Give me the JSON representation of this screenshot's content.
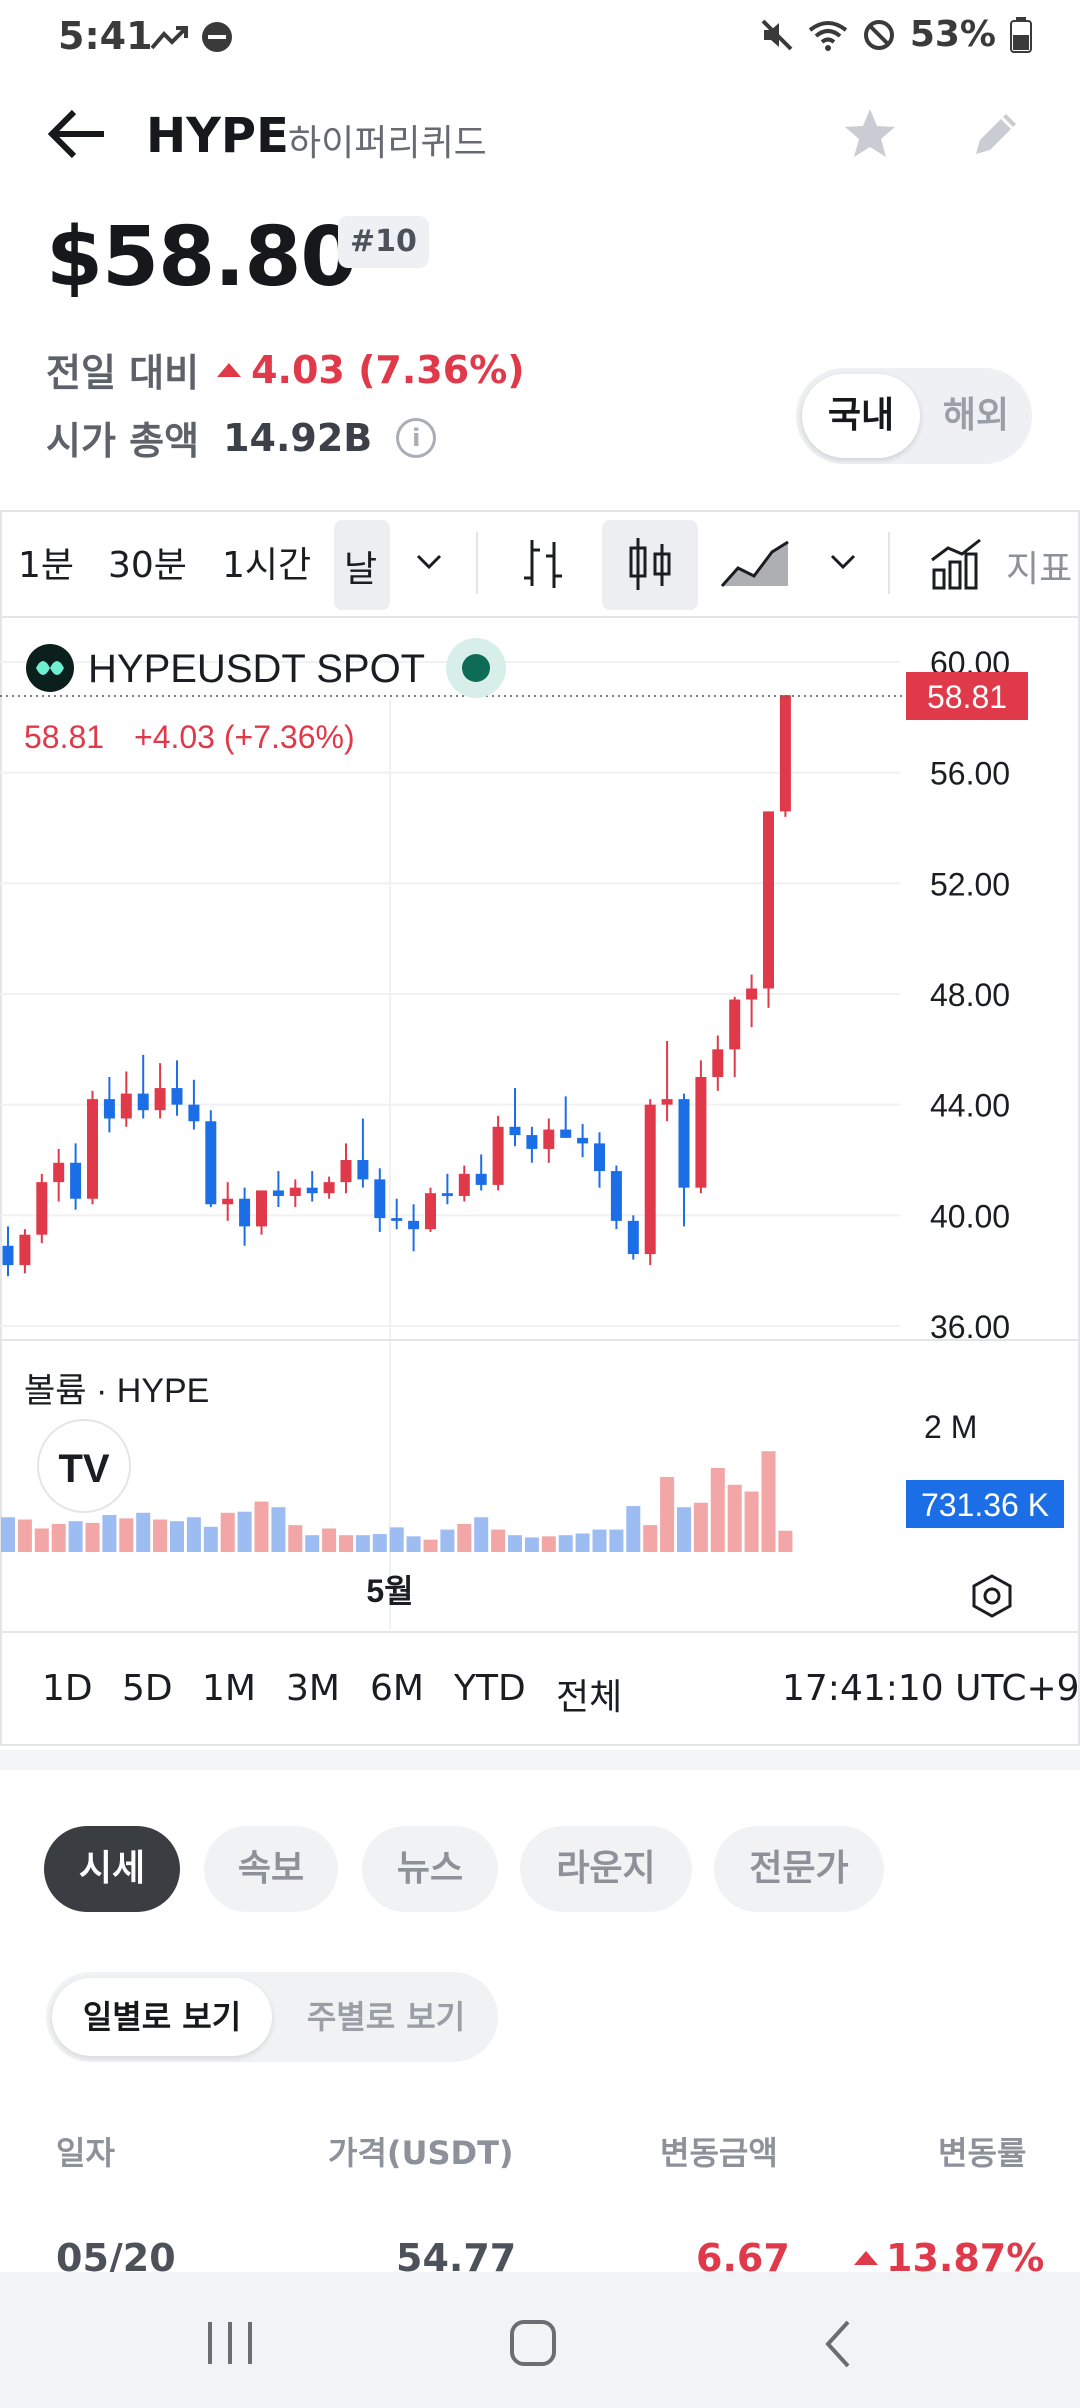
{
  "status_bar": {
    "time": "5:41",
    "battery": "53%"
  },
  "header": {
    "symbol": "HYPE",
    "name": "하이퍼리퀴드"
  },
  "price": {
    "value": "$58.80",
    "rank": "#10"
  },
  "change": {
    "label": "전일 대비",
    "value": "4.03 (7.36%)"
  },
  "market_cap": {
    "label": "시가 총액",
    "value": "14.92B",
    "info": "i"
  },
  "region_toggle": {
    "domestic": "국내",
    "overseas": "해외"
  },
  "toolbar": {
    "intervals": [
      "1분",
      "30분",
      "1시간",
      "날"
    ],
    "indicators_label": "지표"
  },
  "chart_header": {
    "symbol": "HYPEUSDT SPOT",
    "last": "58.81",
    "change": "+4.03 (+7.36%)",
    "last_tag": "58.81"
  },
  "volume_header": {
    "label": "볼륨 · HYPE",
    "tag": "731.36 K",
    "axis_label": "2 M"
  },
  "x_axis": {
    "label": "5월"
  },
  "ranges": [
    "1D",
    "5D",
    "1M",
    "3M",
    "6M",
    "YTD",
    "전체"
  ],
  "chart_time": "17:41:10 UTC+9",
  "tabs": [
    "시세",
    "속보",
    "뉴스",
    "라운지",
    "전문가"
  ],
  "period_toggle": {
    "daily": "일별로 보기",
    "weekly": "주별로 보기"
  },
  "table": {
    "headers": [
      "일자",
      "가격(USDT)",
      "변동금액",
      "변동률"
    ],
    "rows": [
      {
        "date": "05/20",
        "price": "54.77",
        "change": "6.67",
        "rate": "13.87%"
      }
    ]
  },
  "colors": {
    "up": "#e0394a",
    "down": "#1b6ee6",
    "vol_up": "#f2a6a6",
    "vol_down": "#9dbcf2"
  },
  "chart_data": {
    "type": "candlestick",
    "symbol": "HYPEUSDT SPOT",
    "yticks": [
      60,
      56,
      52,
      48,
      44,
      40,
      36
    ],
    "ylim": [
      36,
      60
    ],
    "candles": [
      {
        "o": 38.9,
        "h": 39.6,
        "l": 37.8,
        "c": 38.2
      },
      {
        "o": 38.2,
        "h": 39.5,
        "l": 37.9,
        "c": 39.3
      },
      {
        "o": 39.3,
        "h": 41.5,
        "l": 39.0,
        "c": 41.2
      },
      {
        "o": 41.2,
        "h": 42.4,
        "l": 40.5,
        "c": 41.9
      },
      {
        "o": 41.9,
        "h": 42.6,
        "l": 40.2,
        "c": 40.6
      },
      {
        "o": 40.6,
        "h": 44.5,
        "l": 40.4,
        "c": 44.2
      },
      {
        "o": 44.2,
        "h": 45.0,
        "l": 43.0,
        "c": 43.5
      },
      {
        "o": 43.5,
        "h": 45.2,
        "l": 43.2,
        "c": 44.4
      },
      {
        "o": 44.4,
        "h": 45.8,
        "l": 43.5,
        "c": 43.8
      },
      {
        "o": 43.8,
        "h": 45.5,
        "l": 43.5,
        "c": 44.6
      },
      {
        "o": 44.6,
        "h": 45.6,
        "l": 43.6,
        "c": 44.0
      },
      {
        "o": 44.0,
        "h": 44.9,
        "l": 43.1,
        "c": 43.4
      },
      {
        "o": 43.4,
        "h": 43.8,
        "l": 40.3,
        "c": 40.4
      },
      {
        "o": 40.4,
        "h": 41.2,
        "l": 39.8,
        "c": 40.6
      },
      {
        "o": 40.6,
        "h": 41.0,
        "l": 38.9,
        "c": 39.6
      },
      {
        "o": 39.6,
        "h": 40.8,
        "l": 39.3,
        "c": 40.9
      },
      {
        "o": 40.9,
        "h": 41.6,
        "l": 40.3,
        "c": 40.7
      },
      {
        "o": 40.7,
        "h": 41.3,
        "l": 40.3,
        "c": 41.0
      },
      {
        "o": 41.0,
        "h": 41.6,
        "l": 40.5,
        "c": 40.8
      },
      {
        "o": 40.8,
        "h": 41.4,
        "l": 40.6,
        "c": 41.2
      },
      {
        "o": 41.2,
        "h": 42.6,
        "l": 40.8,
        "c": 42.0
      },
      {
        "o": 42.0,
        "h": 43.5,
        "l": 41.0,
        "c": 41.3
      },
      {
        "o": 41.3,
        "h": 41.7,
        "l": 39.4,
        "c": 39.9
      },
      {
        "o": 39.9,
        "h": 40.6,
        "l": 39.5,
        "c": 39.8
      },
      {
        "o": 39.8,
        "h": 40.4,
        "l": 38.7,
        "c": 39.5
      },
      {
        "o": 39.5,
        "h": 41.0,
        "l": 39.4,
        "c": 40.8
      },
      {
        "o": 40.8,
        "h": 41.5,
        "l": 40.4,
        "c": 40.7
      },
      {
        "o": 40.7,
        "h": 41.8,
        "l": 40.5,
        "c": 41.5
      },
      {
        "o": 41.5,
        "h": 42.2,
        "l": 40.9,
        "c": 41.1
      },
      {
        "o": 41.1,
        "h": 43.6,
        "l": 40.9,
        "c": 43.2
      },
      {
        "o": 43.2,
        "h": 44.6,
        "l": 42.5,
        "c": 42.9
      },
      {
        "o": 42.9,
        "h": 43.2,
        "l": 41.9,
        "c": 42.4
      },
      {
        "o": 42.4,
        "h": 43.5,
        "l": 41.9,
        "c": 43.1
      },
      {
        "o": 43.1,
        "h": 44.3,
        "l": 42.8,
        "c": 42.8
      },
      {
        "o": 42.8,
        "h": 43.3,
        "l": 42.1,
        "c": 42.6
      },
      {
        "o": 42.6,
        "h": 43.0,
        "l": 41.0,
        "c": 41.6
      },
      {
        "o": 41.6,
        "h": 41.8,
        "l": 39.5,
        "c": 39.8
      },
      {
        "o": 39.8,
        "h": 40.0,
        "l": 38.4,
        "c": 38.6
      },
      {
        "o": 38.6,
        "h": 44.2,
        "l": 38.2,
        "c": 44.0
      },
      {
        "o": 44.0,
        "h": 46.3,
        "l": 43.4,
        "c": 44.2
      },
      {
        "o": 44.2,
        "h": 44.4,
        "l": 39.6,
        "c": 41.0
      },
      {
        "o": 41.0,
        "h": 45.6,
        "l": 40.8,
        "c": 45.0
      },
      {
        "o": 45.0,
        "h": 46.5,
        "l": 44.5,
        "c": 46.0
      },
      {
        "o": 46.0,
        "h": 47.9,
        "l": 45.0,
        "c": 47.8
      },
      {
        "o": 47.8,
        "h": 48.7,
        "l": 46.8,
        "c": 48.2
      },
      {
        "o": 48.2,
        "h": 54.6,
        "l": 47.5,
        "c": 54.6
      },
      {
        "o": 54.6,
        "h": 58.8,
        "l": 54.4,
        "c": 58.8
      }
    ],
    "volume_relative": [
      0.62,
      0.58,
      0.42,
      0.5,
      0.55,
      0.52,
      0.66,
      0.6,
      0.7,
      0.58,
      0.55,
      0.62,
      0.45,
      0.7,
      0.72,
      0.9,
      0.8,
      0.48,
      0.3,
      0.42,
      0.3,
      0.3,
      0.32,
      0.44,
      0.28,
      0.22,
      0.4,
      0.5,
      0.62,
      0.4,
      0.3,
      0.26,
      0.28,
      0.3,
      0.33,
      0.4,
      0.4,
      0.82,
      0.48,
      1.34,
      0.8,
      0.88,
      1.5,
      1.2,
      1.08,
      1.8,
      0.38
    ],
    "x_label": "5월"
  }
}
